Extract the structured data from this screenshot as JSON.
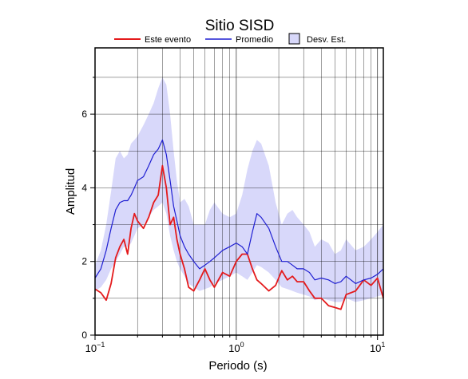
{
  "chart_data": {
    "type": "line",
    "title": "Sitio SISD",
    "xlabel": "Periodo (s)",
    "ylabel": "Amplitud",
    "xscale": "log",
    "xlim": [
      0.1,
      11
    ],
    "ylim": [
      0,
      7.8
    ],
    "grid": true,
    "legend_position": "top",
    "x_ticks": [
      {
        "base": "10",
        "exp": "−1",
        "value": 0.1
      },
      {
        "base": "10",
        "exp": "0",
        "value": 1
      },
      {
        "base": "10",
        "exp": "1",
        "value": 10
      }
    ],
    "y_ticks": [
      "0",
      "2",
      "4",
      "6"
    ],
    "legend": {
      "event": "Este evento",
      "mean": "Promedio",
      "std": "Desv. Est."
    },
    "colors": {
      "event": "#e41a1c",
      "mean": "#1f1fd2",
      "band": "#d8d8fa"
    },
    "x": [
      0.1,
      0.11,
      0.12,
      0.13,
      0.14,
      0.15,
      0.16,
      0.17,
      0.18,
      0.19,
      0.2,
      0.22,
      0.24,
      0.26,
      0.28,
      0.3,
      0.32,
      0.34,
      0.36,
      0.38,
      0.4,
      0.43,
      0.46,
      0.5,
      0.55,
      0.6,
      0.65,
      0.7,
      0.8,
      0.9,
      1.0,
      1.1,
      1.2,
      1.3,
      1.4,
      1.5,
      1.7,
      1.9,
      2.1,
      2.3,
      2.5,
      2.7,
      3.0,
      3.3,
      3.6,
      4.0,
      4.5,
      5.0,
      5.5,
      6.0,
      7.0,
      8.0,
      9.0,
      10.0,
      11.0
    ],
    "series": [
      {
        "name": "Este evento",
        "values": [
          1.25,
          1.15,
          0.95,
          1.4,
          2.1,
          2.4,
          2.6,
          2.2,
          2.9,
          3.3,
          3.1,
          2.9,
          3.2,
          3.6,
          3.8,
          4.6,
          4.0,
          3.0,
          3.2,
          2.6,
          2.2,
          1.8,
          1.3,
          1.2,
          1.5,
          1.8,
          1.5,
          1.3,
          1.7,
          1.6,
          2.0,
          2.2,
          2.2,
          1.8,
          1.5,
          1.4,
          1.2,
          1.35,
          1.75,
          1.5,
          1.6,
          1.45,
          1.45,
          1.2,
          1.0,
          1.0,
          0.8,
          0.75,
          0.7,
          1.1,
          1.2,
          1.5,
          1.35,
          1.55,
          1.0
        ]
      },
      {
        "name": "Promedio",
        "values": [
          1.55,
          1.8,
          2.3,
          2.9,
          3.4,
          3.6,
          3.65,
          3.65,
          3.8,
          4.0,
          4.2,
          4.3,
          4.6,
          4.9,
          5.05,
          5.3,
          4.9,
          4.2,
          3.5,
          3.1,
          2.7,
          2.4,
          2.2,
          2.0,
          1.8,
          1.9,
          2.0,
          2.1,
          2.3,
          2.4,
          2.5,
          2.4,
          2.2,
          2.8,
          3.3,
          3.2,
          2.9,
          2.4,
          2.0,
          2.0,
          1.9,
          1.8,
          1.8,
          1.7,
          1.5,
          1.55,
          1.5,
          1.4,
          1.45,
          1.6,
          1.4,
          1.5,
          1.55,
          1.65,
          1.8
        ]
      }
    ],
    "band": {
      "name": "Desv. Est.",
      "upper": [
        1.9,
        2.3,
        3.0,
        3.9,
        4.8,
        5.0,
        4.8,
        4.9,
        5.2,
        5.3,
        5.4,
        5.7,
        6.0,
        6.3,
        6.7,
        7.0,
        6.8,
        6.0,
        5.0,
        4.2,
        3.6,
        3.7,
        3.5,
        3.0,
        3.0,
        3.0,
        3.4,
        3.6,
        3.3,
        3.2,
        3.3,
        3.8,
        4.5,
        5.0,
        5.3,
        5.2,
        4.6,
        3.6,
        3.0,
        3.3,
        3.4,
        3.2,
        3.0,
        2.8,
        2.4,
        2.6,
        2.5,
        2.2,
        2.3,
        2.6,
        2.3,
        2.4,
        2.6,
        2.8,
        3.0
      ],
      "lower": [
        1.2,
        1.3,
        1.5,
        1.8,
        2.0,
        2.2,
        2.4,
        2.4,
        2.5,
        2.7,
        2.9,
        3.0,
        3.2,
        3.4,
        3.5,
        3.6,
        3.3,
        2.7,
        2.3,
        2.0,
        1.8,
        1.6,
        1.4,
        1.3,
        1.2,
        1.25,
        1.3,
        1.4,
        1.5,
        1.6,
        1.7,
        1.6,
        1.5,
        1.7,
        1.9,
        1.85,
        1.7,
        1.5,
        1.3,
        1.25,
        1.2,
        1.15,
        1.1,
        1.05,
        0.95,
        1.0,
        0.95,
        0.9,
        0.9,
        1.0,
        0.9,
        0.95,
        1.0,
        1.05,
        1.1
      ]
    }
  }
}
